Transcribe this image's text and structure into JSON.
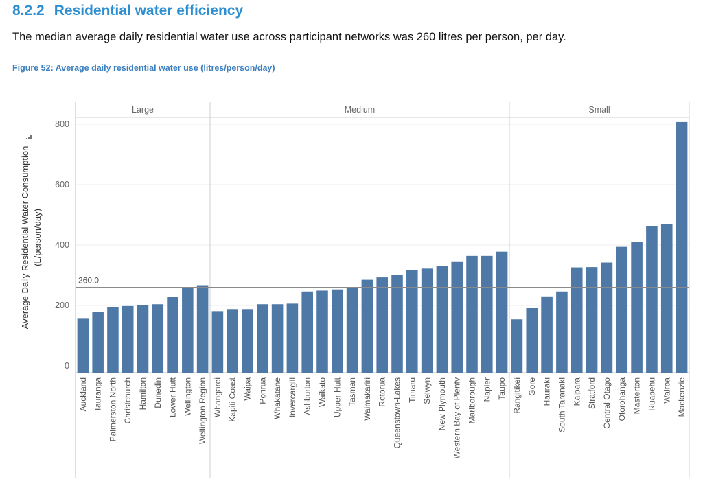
{
  "section": {
    "number": "8.2.2",
    "title": "Residential water efficiency",
    "intro": "The median average daily residential water use across participant networks was 260 litres per person, per day."
  },
  "figure": {
    "caption": "Figure 52: Average daily residential water use (litres/person/day)"
  },
  "chart_data": {
    "type": "bar",
    "ylabel": "Average Daily Residential Water Consumption (L/person/day)",
    "ylabel_line1": "Average Daily Residential Water Consumption",
    "ylabel_line2": "(L/person/day)",
    "ylim": [
      0,
      850
    ],
    "yticks": [
      0,
      200,
      400,
      600,
      800
    ],
    "grid": true,
    "reference_line": {
      "value": 260.0,
      "label": "260.0"
    },
    "bar_color": "#4e79a7",
    "panels": [
      {
        "name": "Large",
        "categories": [
          "Auckland",
          "Tauranga",
          "Palmerston North",
          "Christchurch",
          "Hamilton",
          "Dunedin",
          "Lower Hutt",
          "Wellington",
          "Wellington Region"
        ],
        "values": [
          156,
          178,
          194,
          198,
          201,
          204,
          229,
          260,
          267
        ]
      },
      {
        "name": "Medium",
        "categories": [
          "Whangarei",
          "Kapiti Coast",
          "Waipa",
          "Porirua",
          "Whakatane",
          "Invercargill",
          "Ashburton",
          "Waikato",
          "Upper Hutt",
          "Tasman",
          "Waimakariri",
          "Rotorua",
          "Queenstown-Lakes",
          "Timaru",
          "Selwyn",
          "New Plymouth",
          "Western Bay of Plenty",
          "Marlborough",
          "Napier",
          "Taupo"
        ],
        "values": [
          181,
          188,
          188,
          204,
          204,
          206,
          246,
          249,
          253,
          261,
          285,
          293,
          301,
          316,
          322,
          330,
          346,
          364,
          364,
          378
        ]
      },
      {
        "name": "Small",
        "categories": [
          "Rangitikei",
          "Gore",
          "Hauraki",
          "South Taranaki",
          "Kaipara",
          "Stratford",
          "Central Otago",
          "Otorohanga",
          "Masterton",
          "Ruapehu",
          "Wairoa",
          "Mackenzie"
        ],
        "values": [
          154,
          191,
          230,
          246,
          326,
          327,
          342,
          394,
          411,
          462,
          469,
          807
        ]
      }
    ]
  }
}
